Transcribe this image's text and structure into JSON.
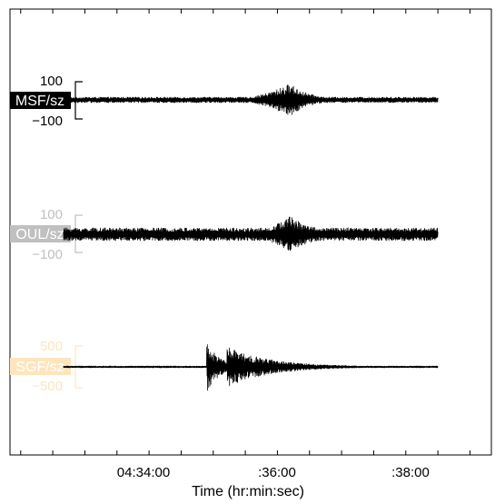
{
  "chart_data": {
    "type": "line",
    "title": "",
    "xlabel": "Time (hr:min:sec)",
    "ylabel": "",
    "x_ticks": [
      {
        "label": "04:34:00",
        "time": "04:34:00"
      },
      {
        "label": ":36:00",
        "time": "04:36:00"
      },
      {
        "label": ":38:00",
        "time": "04:38:00"
      }
    ],
    "xlim": [
      "04:32:20",
      "04:39:50"
    ],
    "data_range": [
      "04:33:10",
      "04:39:00"
    ],
    "grid": false,
    "legend": "none",
    "series": [
      {
        "name": "MSF/sz",
        "label_color": "#000000",
        "label_text_color": "#ffffff",
        "scale_color": "#000000",
        "scale_labels": [
          "100",
          "−100"
        ],
        "ylim": [
          -100,
          100
        ],
        "noise_amplitude": 15,
        "events": [
          {
            "type": "emergent",
            "start": "04:35:40",
            "peak": "04:36:42",
            "peak_amplitude": 90,
            "decay_end": "04:37:40"
          }
        ]
      },
      {
        "name": "OUL/sz",
        "label_color": "#c0c0c0",
        "label_text_color": "#ffffff",
        "scale_color": "#c0c0c0",
        "scale_labels": [
          "100",
          "−100"
        ],
        "ylim": [
          -100,
          100
        ],
        "noise_amplitude": 35,
        "events": [
          {
            "type": "emergent",
            "start": "04:35:50",
            "peak": "04:36:42",
            "peak_amplitude": 100,
            "decay_end": "04:38:00"
          }
        ]
      },
      {
        "name": "SGF/sz",
        "label_color": "#fde5bd",
        "label_text_color": "#ffffff",
        "scale_color": "#fde5bd",
        "scale_labels": [
          "500",
          "−500"
        ],
        "ylim": [
          -500,
          500
        ],
        "noise_amplitude": 20,
        "events": [
          {
            "type": "impulsive",
            "start": "04:35:24",
            "peak_amplitude": 600,
            "decay_seconds": 12
          },
          {
            "type": "impulsive",
            "start": "04:35:43",
            "peak_amplitude": 480,
            "decay_seconds": 40
          }
        ]
      }
    ]
  }
}
